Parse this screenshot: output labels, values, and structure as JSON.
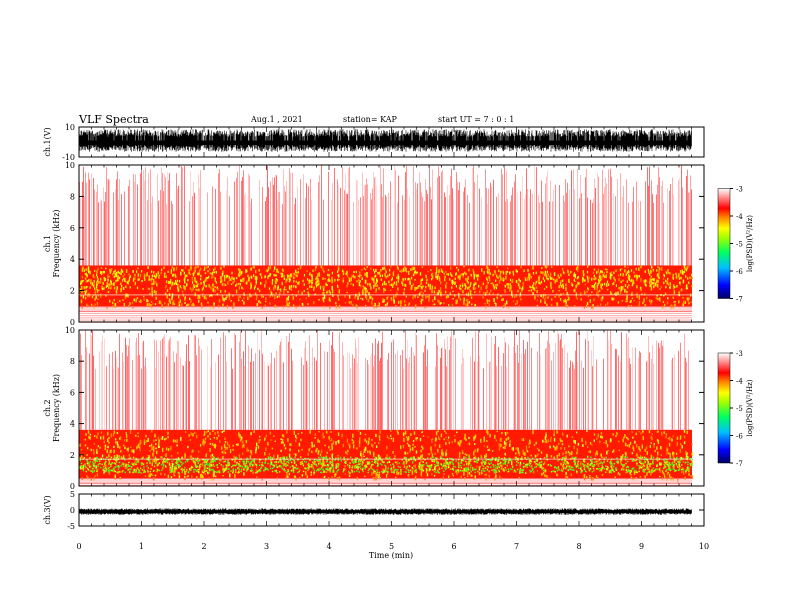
{
  "header": {
    "title": "VLF Spectra",
    "date": "Aug.1 , 2021",
    "station": "station= KAP",
    "start": "start UT = 7 : 0 : 1"
  },
  "chart_data": [
    {
      "type": "line",
      "panel": "ch1-waveform",
      "ylabel": "ch.1(V)",
      "ylim": [
        -10,
        10
      ],
      "yticks": [
        "10",
        "-10"
      ],
      "xlim": [
        0,
        10
      ],
      "note_amplitude_range": [
        -6.5,
        8.5
      ]
    },
    {
      "type": "heatmap",
      "panel": "ch1-spectrogram",
      "ylabel": "ch.1\nFrequency (kHz)",
      "ylim": [
        0,
        10
      ],
      "yticks": [
        "0",
        "2",
        "4",
        "6",
        "8",
        "10"
      ],
      "xlim": [
        0,
        9.85
      ],
      "intense_band_khz": [
        1.0,
        3.6
      ],
      "colorbar": {
        "label": "log(PSD)(V²/Hz)",
        "range": [
          -7,
          -3
        ],
        "ticks": [
          "-3",
          "-4",
          "-5",
          "-6",
          "-7"
        ]
      }
    },
    {
      "type": "heatmap",
      "panel": "ch2-spectrogram",
      "ylabel": "ch.2\nFrequency (kHz)",
      "ylim": [
        0,
        10
      ],
      "yticks": [
        "0",
        "2",
        "4",
        "6",
        "8",
        "10"
      ],
      "xlim": [
        0,
        9.85
      ],
      "intense_band_khz": [
        0.5,
        3.6
      ],
      "colorbar": {
        "label": "log(PSD)(V²/Hz)",
        "range": [
          -7,
          -3
        ],
        "ticks": [
          "-3",
          "-4",
          "-5",
          "-6",
          "-7"
        ]
      }
    },
    {
      "type": "line",
      "panel": "ch3-waveform",
      "ylabel": "ch.3(V)",
      "ylim": [
        -5,
        5
      ],
      "yticks": [
        "5",
        "0",
        "-5"
      ],
      "xlim": [
        0,
        10
      ],
      "xlabel": "Time (min)",
      "xticks": [
        "0",
        "1",
        "2",
        "3",
        "4",
        "5",
        "6",
        "7",
        "8",
        "9",
        "10"
      ],
      "note_amplitude_range": [
        -1.5,
        0.5
      ]
    }
  ],
  "colors": {
    "colormap": [
      "#000080",
      "#0000ff",
      "#00c8ff",
      "#00ff80",
      "#40ff00",
      "#c0ff00",
      "#ffff00",
      "#ff8000",
      "#ff0000",
      "#ff8080",
      "#ffffff"
    ],
    "axis": "#000000",
    "trace": "#000000"
  }
}
